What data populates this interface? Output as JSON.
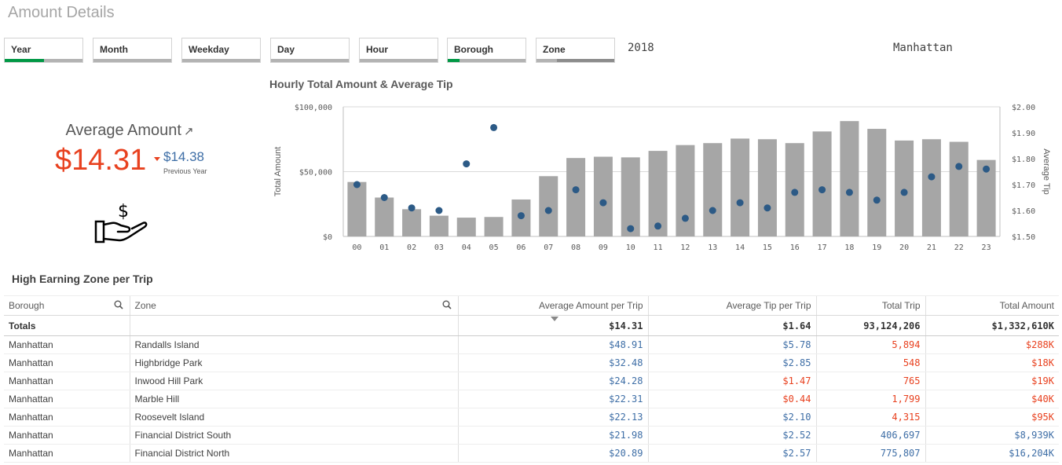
{
  "sheet": {
    "title": "Amount Details"
  },
  "filters": [
    {
      "label": "Year",
      "fill_fraction": 0.5,
      "selected": true
    },
    {
      "label": "Month",
      "fill_fraction": 0
    },
    {
      "label": "Weekday",
      "fill_fraction": 0
    },
    {
      "label": "Day",
      "fill_fraction": 0
    },
    {
      "label": "Hour",
      "fill_fraction": 0
    },
    {
      "label": "Borough",
      "fill_fraction": 0.15,
      "selected": true
    },
    {
      "label": "Zone",
      "fill_fraction": 0,
      "excluded_fraction": 0.74
    }
  ],
  "selections": {
    "year": "2018",
    "borough": "Manhattan"
  },
  "kpi": {
    "title": "Average Amount",
    "value": "$14.31",
    "previous_value": "$14.38",
    "previous_label": "Previous Year",
    "trend": "down"
  },
  "icons": {
    "kpi": "hand-money-icon",
    "external": "external-link-icon",
    "search": "search-icon"
  },
  "colors": {
    "accent_green": "#009845",
    "red": "#e8411f",
    "blue": "#3e6ea6",
    "bar": "#a6a6a6",
    "dot": "#2c5a86"
  },
  "chart_title": "Hourly Total Amount & Average Tip",
  "chart_data": {
    "type": "bar",
    "title": "Hourly Total Amount & Average Tip",
    "categories": [
      "00",
      "01",
      "02",
      "03",
      "04",
      "05",
      "06",
      "07",
      "08",
      "09",
      "10",
      "11",
      "12",
      "13",
      "14",
      "15",
      "16",
      "17",
      "18",
      "19",
      "20",
      "21",
      "22",
      "23"
    ],
    "series": [
      {
        "name": "Total Amount",
        "type": "bar",
        "axis": "left",
        "values": [
          42000,
          30000,
          21000,
          16000,
          14500,
          15000,
          28500,
          46500,
          60500,
          61500,
          61000,
          66000,
          70500,
          72000,
          75500,
          75000,
          72000,
          81000,
          89000,
          83000,
          74000,
          75000,
          73000,
          59000
        ]
      },
      {
        "name": "Average Tip",
        "type": "scatter",
        "axis": "right",
        "values": [
          1.7,
          1.65,
          1.61,
          1.6,
          1.78,
          1.92,
          1.58,
          1.6,
          1.68,
          1.63,
          1.53,
          1.54,
          1.57,
          1.6,
          1.63,
          1.61,
          1.67,
          1.68,
          1.67,
          1.64,
          1.67,
          1.73,
          1.77,
          1.76
        ]
      }
    ],
    "ylabel": "Total Amount",
    "y2label": "Average Tip",
    "ylim": [
      0,
      100000
    ],
    "y2lim": [
      1.5,
      2.0
    ],
    "yticks": [
      "$0",
      "$50,000",
      "$100,000"
    ],
    "y2ticks": [
      "$1.50",
      "$1.60",
      "$1.70",
      "$1.80",
      "$1.90",
      "$2.00"
    ],
    "grid": true
  },
  "table": {
    "title": "High Earning Zone per Trip",
    "headers": [
      "Borough",
      "Zone",
      "Average Amount per Trip",
      "Average Tip per Trip",
      "Total Trip",
      "Total Amount"
    ],
    "totals": [
      "Totals",
      "",
      "$14.31",
      "$1.64",
      "93,124,206",
      "$1,332,610K"
    ],
    "rows": [
      [
        "Manhattan",
        "Randalls Island",
        "$48.91",
        "$5.78",
        "5,894",
        "$288K"
      ],
      [
        "Manhattan",
        "Highbridge Park",
        "$32.48",
        "$2.85",
        "548",
        "$18K"
      ],
      [
        "Manhattan",
        "Inwood Hill Park",
        "$24.28",
        "$1.47",
        "765",
        "$19K"
      ],
      [
        "Manhattan",
        "Marble Hill",
        "$22.31",
        "$0.44",
        "1,799",
        "$40K"
      ],
      [
        "Manhattan",
        "Roosevelt Island",
        "$22.13",
        "$2.10",
        "4,315",
        "$95K"
      ],
      [
        "Manhattan",
        "Financial District South",
        "$21.98",
        "$2.52",
        "406,697",
        "$8,939K"
      ],
      [
        "Manhattan",
        "Financial District North",
        "$20.89",
        "$2.57",
        "775,807",
        "$16,204K"
      ]
    ],
    "cell_colors": [
      [
        "",
        "",
        "blue",
        "blue",
        "red",
        "red"
      ],
      [
        "",
        "",
        "blue",
        "blue",
        "red",
        "red"
      ],
      [
        "",
        "",
        "blue",
        "red",
        "red",
        "red"
      ],
      [
        "",
        "",
        "blue",
        "red",
        "red",
        "red"
      ],
      [
        "",
        "",
        "blue",
        "blue",
        "red",
        "red"
      ],
      [
        "",
        "",
        "blue",
        "blue",
        "blue",
        "blue"
      ],
      [
        "",
        "",
        "blue",
        "blue",
        "blue",
        "blue"
      ]
    ]
  }
}
